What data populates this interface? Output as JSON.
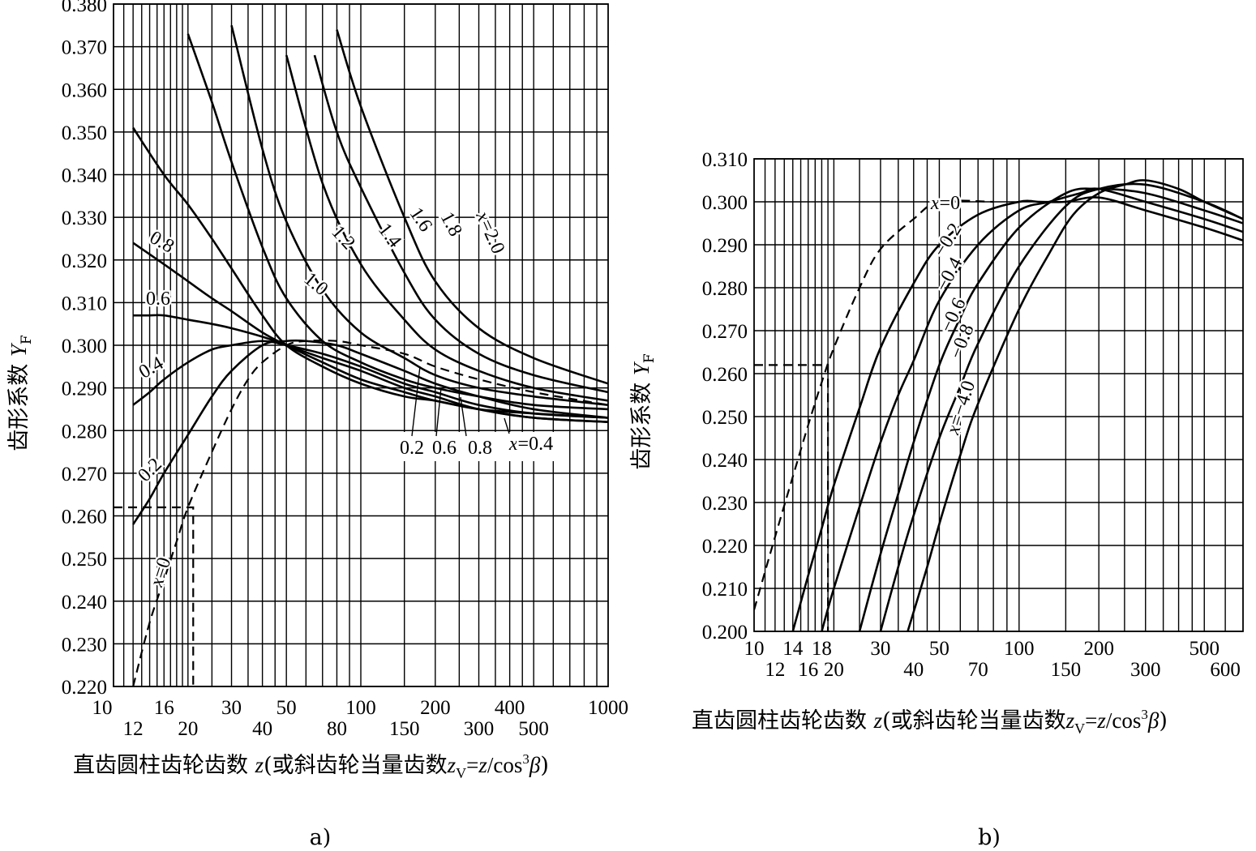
{
  "chart_data": [
    {
      "type": "line",
      "panel_label": "a)",
      "xscale": "log",
      "xlim": [
        10,
        1000
      ],
      "ylim": [
        0.22,
        0.38
      ],
      "ylabel": "齿形系数 Y",
      "ylabel_sub": "F",
      "xlabel": {
        "pre": "直齿圆柱齿轮齿数 ",
        "z": "z",
        "mid": "(或斜齿轮当量齿数",
        "zv": "z",
        "zv_sub": "V",
        "eq": "=",
        "z2": "z",
        "slash": "/cos",
        "sup": "3",
        "beta": "β",
        "close": ")"
      },
      "y_ticks": [
        "0.220",
        "0.230",
        "0.240",
        "0.250",
        "0.260",
        "0.270",
        "0.280",
        "0.290",
        "0.300",
        "0.310",
        "0.320",
        "0.330",
        "0.340",
        "0.350",
        "0.360",
        "0.370",
        "0.380"
      ],
      "x_ticks_upper": [
        "10",
        "16",
        "30",
        "50",
        "100",
        "200",
        "400",
        "1000"
      ],
      "x_ticks_lower": [
        "12",
        "20",
        "40",
        "80",
        "150",
        "300",
        "500"
      ],
      "series": [
        {
          "name": "x=0",
          "style": "dashed",
          "points": [
            [
              12,
              0.22
            ],
            [
              14,
              0.235
            ],
            [
              16,
              0.245
            ],
            [
              18,
              0.254
            ],
            [
              20,
              0.262
            ],
            [
              25,
              0.275
            ],
            [
              30,
              0.285
            ],
            [
              35,
              0.292
            ],
            [
              40,
              0.296
            ],
            [
              50,
              0.3
            ],
            [
              60,
              0.301
            ],
            [
              80,
              0.301
            ],
            [
              100,
              0.3
            ],
            [
              150,
              0.298
            ],
            [
              200,
              0.295
            ],
            [
              300,
              0.292
            ],
            [
              500,
              0.289
            ],
            [
              1000,
              0.286
            ]
          ]
        },
        {
          "name": "0.2",
          "points": [
            [
              12,
              0.258
            ],
            [
              14,
              0.264
            ],
            [
              16,
              0.27
            ],
            [
              20,
              0.279
            ],
            [
              25,
              0.288
            ],
            [
              30,
              0.294
            ],
            [
              40,
              0.3
            ],
            [
              50,
              0.301
            ],
            [
              60,
              0.301
            ],
            [
              80,
              0.3
            ],
            [
              100,
              0.298
            ],
            [
              150,
              0.294
            ],
            [
              200,
              0.291
            ],
            [
              300,
              0.288
            ],
            [
              500,
              0.285
            ],
            [
              1000,
              0.283
            ]
          ]
        },
        {
          "name": "0.4",
          "points": [
            [
              12,
              0.286
            ],
            [
              14,
              0.289
            ],
            [
              16,
              0.292
            ],
            [
              20,
              0.296
            ],
            [
              25,
              0.299
            ],
            [
              30,
              0.3
            ],
            [
              40,
              0.301
            ],
            [
              50,
              0.3
            ],
            [
              70,
              0.298
            ],
            [
              100,
              0.295
            ],
            [
              150,
              0.291
            ],
            [
              200,
              0.289
            ],
            [
              300,
              0.286
            ],
            [
              500,
              0.284
            ],
            [
              1000,
              0.283
            ]
          ]
        },
        {
          "name": "0.6",
          "points": [
            [
              12,
              0.307
            ],
            [
              14,
              0.307
            ],
            [
              16,
              0.307
            ],
            [
              20,
              0.306
            ],
            [
              25,
              0.305
            ],
            [
              30,
              0.304
            ],
            [
              40,
              0.302
            ],
            [
              50,
              0.3
            ],
            [
              70,
              0.297
            ],
            [
              100,
              0.294
            ],
            [
              150,
              0.29
            ],
            [
              200,
              0.288
            ],
            [
              300,
              0.285
            ],
            [
              500,
              0.283
            ],
            [
              1000,
              0.282
            ]
          ]
        },
        {
          "name": "0.8",
          "points": [
            [
              12,
              0.324
            ],
            [
              16,
              0.319
            ],
            [
              20,
              0.315
            ],
            [
              25,
              0.311
            ],
            [
              30,
              0.308
            ],
            [
              40,
              0.303
            ],
            [
              50,
              0.3
            ],
            [
              70,
              0.296
            ],
            [
              100,
              0.292
            ],
            [
              150,
              0.289
            ],
            [
              200,
              0.287
            ],
            [
              300,
              0.285
            ],
            [
              500,
              0.283
            ],
            [
              1000,
              0.282
            ]
          ]
        },
        {
          "name": "1.0",
          "points": [
            [
              12,
              0.351
            ],
            [
              16,
              0.34
            ],
            [
              20,
              0.333
            ],
            [
              25,
              0.325
            ],
            [
              30,
              0.318
            ],
            [
              40,
              0.307
            ],
            [
              50,
              0.3
            ],
            [
              70,
              0.295
            ],
            [
              100,
              0.291
            ],
            [
              150,
              0.288
            ],
            [
              200,
              0.287
            ],
            [
              300,
              0.285
            ],
            [
              500,
              0.284
            ],
            [
              1000,
              0.283
            ]
          ]
        },
        {
          "name": "1.2",
          "points": [
            [
              20,
              0.373
            ],
            [
              25,
              0.357
            ],
            [
              30,
              0.343
            ],
            [
              40,
              0.323
            ],
            [
              50,
              0.311
            ],
            [
              70,
              0.301
            ],
            [
              100,
              0.296
            ],
            [
              150,
              0.292
            ],
            [
              200,
              0.29
            ],
            [
              300,
              0.288
            ],
            [
              500,
              0.286
            ],
            [
              1000,
              0.285
            ]
          ]
        },
        {
          "name": "1.4",
          "points": [
            [
              30,
              0.375
            ],
            [
              40,
              0.346
            ],
            [
              50,
              0.329
            ],
            [
              70,
              0.313
            ],
            [
              100,
              0.303
            ],
            [
              150,
              0.297
            ],
            [
              200,
              0.293
            ],
            [
              300,
              0.29
            ],
            [
              500,
              0.288
            ],
            [
              1000,
              0.286
            ]
          ]
        },
        {
          "name": "1.6",
          "points": [
            [
              50,
              0.368
            ],
            [
              70,
              0.338
            ],
            [
              100,
              0.319
            ],
            [
              150,
              0.306
            ],
            [
              200,
              0.299
            ],
            [
              300,
              0.294
            ],
            [
              500,
              0.29
            ],
            [
              1000,
              0.287
            ]
          ]
        },
        {
          "name": "1.8",
          "points": [
            [
              65,
              0.368
            ],
            [
              80,
              0.35
            ],
            [
              100,
              0.337
            ],
            [
              150,
              0.317
            ],
            [
              200,
              0.306
            ],
            [
              300,
              0.298
            ],
            [
              500,
              0.293
            ],
            [
              1000,
              0.289
            ]
          ]
        },
        {
          "name": "x=2.0",
          "points": [
            [
              80,
              0.374
            ],
            [
              100,
              0.356
            ],
            [
              150,
              0.33
            ],
            [
              200,
              0.315
            ],
            [
              300,
              0.304
            ],
            [
              500,
              0.297
            ],
            [
              1000,
              0.291
            ]
          ]
        }
      ],
      "curve_labels": [
        "0.8",
        "0.6",
        "0.4",
        "0.2",
        "x=0",
        "1.0",
        "1.2",
        "1.4",
        "1.6",
        "1.8",
        "x=2.0",
        "0.2",
        "0.6",
        "0.8",
        "x=0.4"
      ],
      "reference": {
        "z": 21,
        "y": 0.262
      }
    },
    {
      "type": "line",
      "panel_label": "b)",
      "xscale": "log",
      "xlim": [
        10,
        700
      ],
      "ylim": [
        0.2,
        0.31
      ],
      "ylabel": "齿形系数 Y",
      "ylabel_sub": "F",
      "xlabel": {
        "pre": "直齿圆柱齿轮齿数 ",
        "z": "z",
        "mid": "(或斜齿轮当量齿数",
        "zv": "z",
        "zv_sub": "V",
        "eq": "=",
        "z2": "z",
        "slash": "/cos",
        "sup": "3",
        "beta": "β",
        "close": ")"
      },
      "y_ticks": [
        "0.200",
        "0.210",
        "0.220",
        "0.230",
        "0.240",
        "0.250",
        "0.260",
        "0.270",
        "0.280",
        "0.290",
        "0.300",
        "0.310"
      ],
      "x_ticks_upper": [
        "10",
        "14",
        "18",
        "30",
        "50",
        "100",
        "200",
        "500"
      ],
      "x_ticks_lower": [
        "12",
        "16",
        "20",
        "40",
        "70",
        "150",
        "300",
        "600"
      ],
      "series": [
        {
          "name": "x=0",
          "style": "dashed",
          "points": [
            [
              10,
              0.205
            ],
            [
              12,
              0.222
            ],
            [
              14,
              0.236
            ],
            [
              16,
              0.248
            ],
            [
              18,
              0.258
            ],
            [
              20,
              0.266
            ],
            [
              25,
              0.28
            ],
            [
              30,
              0.289
            ],
            [
              40,
              0.296
            ],
            [
              50,
              0.3
            ],
            [
              80,
              0.3
            ]
          ]
        },
        {
          "name": "-0.2",
          "points": [
            [
              14,
              0.2
            ],
            [
              16,
              0.213
            ],
            [
              18,
              0.224
            ],
            [
              20,
              0.234
            ],
            [
              25,
              0.252
            ],
            [
              30,
              0.266
            ],
            [
              40,
              0.281
            ],
            [
              50,
              0.29
            ],
            [
              70,
              0.297
            ],
            [
              100,
              0.3
            ],
            [
              120,
              0.3
            ],
            [
              150,
              0.3
            ],
            [
              200,
              0.301
            ],
            [
              300,
              0.298
            ],
            [
              500,
              0.294
            ],
            [
              700,
              0.291
            ]
          ]
        },
        {
          "name": "-0.4",
          "points": [
            [
              18,
              0.2
            ],
            [
              20,
              0.21
            ],
            [
              25,
              0.229
            ],
            [
              30,
              0.244
            ],
            [
              35,
              0.255
            ],
            [
              40,
              0.263
            ],
            [
              50,
              0.277
            ],
            [
              70,
              0.29
            ],
            [
              100,
              0.298
            ],
            [
              130,
              0.3
            ],
            [
              170,
              0.302
            ],
            [
              200,
              0.303
            ],
            [
              300,
              0.3
            ],
            [
              500,
              0.296
            ],
            [
              700,
              0.293
            ]
          ]
        },
        {
          "name": "-0.6",
          "points": [
            [
              25,
              0.2
            ],
            [
              30,
              0.218
            ],
            [
              35,
              0.232
            ],
            [
              40,
              0.244
            ],
            [
              50,
              0.262
            ],
            [
              60,
              0.273
            ],
            [
              70,
              0.281
            ],
            [
              100,
              0.294
            ],
            [
              150,
              0.302
            ],
            [
              200,
              0.303
            ],
            [
              300,
              0.302
            ],
            [
              500,
              0.298
            ],
            [
              700,
              0.295
            ]
          ]
        },
        {
          "name": "-0.8",
          "points": [
            [
              30,
              0.2
            ],
            [
              35,
              0.215
            ],
            [
              40,
              0.227
            ],
            [
              50,
              0.245
            ],
            [
              60,
              0.257
            ],
            [
              70,
              0.267
            ],
            [
              100,
              0.285
            ],
            [
              150,
              0.299
            ],
            [
              200,
              0.303
            ],
            [
              300,
              0.304
            ],
            [
              500,
              0.3
            ],
            [
              700,
              0.296
            ]
          ]
        },
        {
          "name": "x=-4.0",
          "points": [
            [
              38,
              0.2
            ],
            [
              45,
              0.215
            ],
            [
              50,
              0.225
            ],
            [
              60,
              0.241
            ],
            [
              70,
              0.253
            ],
            [
              100,
              0.275
            ],
            [
              130,
              0.288
            ],
            [
              160,
              0.297
            ],
            [
              200,
              0.302
            ],
            [
              250,
              0.304
            ],
            [
              300,
              0.305
            ],
            [
              400,
              0.303
            ],
            [
              500,
              0.3
            ],
            [
              700,
              0.296
            ]
          ]
        }
      ],
      "curve_labels": [
        "x=0",
        "-0.2",
        "-0.4",
        "-0.6",
        "-0.8",
        "x=-4.0"
      ],
      "reference": {
        "z": 19,
        "y": 0.262
      }
    }
  ]
}
